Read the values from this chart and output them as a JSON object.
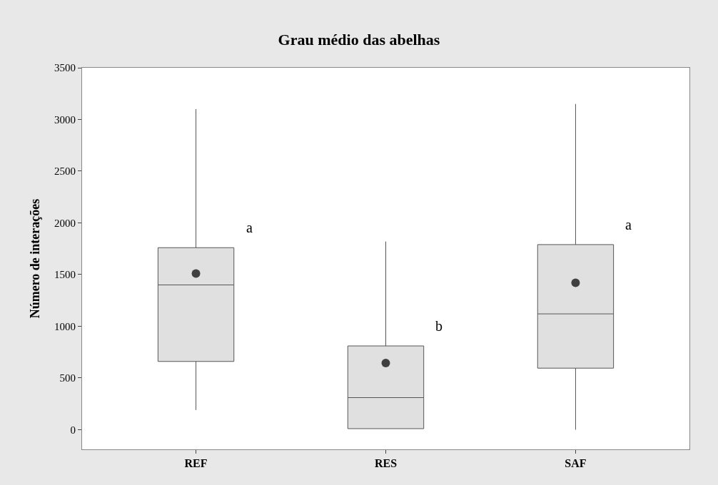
{
  "chart_data": {
    "type": "box",
    "title": "Grau médio das abelhas",
    "ylabel": "Número de interações",
    "categories": [
      "REF",
      "RES",
      "SAF"
    ],
    "boxes": [
      {
        "low": 190,
        "q1": 660,
        "median": 1400,
        "q3": 1760,
        "high": 3100,
        "mean": 1510
      },
      {
        "low": 10,
        "q1": 10,
        "median": 310,
        "q3": 810,
        "high": 1820,
        "mean": 645
      },
      {
        "low": 0,
        "q1": 595,
        "median": 1120,
        "q3": 1790,
        "high": 3150,
        "mean": 1420
      }
    ],
    "color": "#e0e0e0",
    "ylim": [
      -190,
      3500
    ],
    "yticks": [
      0,
      500,
      1000,
      1500,
      2000,
      2500,
      3000,
      3500
    ],
    "marker": "circle",
    "annotations": [
      "a",
      "b",
      "a"
    ]
  }
}
